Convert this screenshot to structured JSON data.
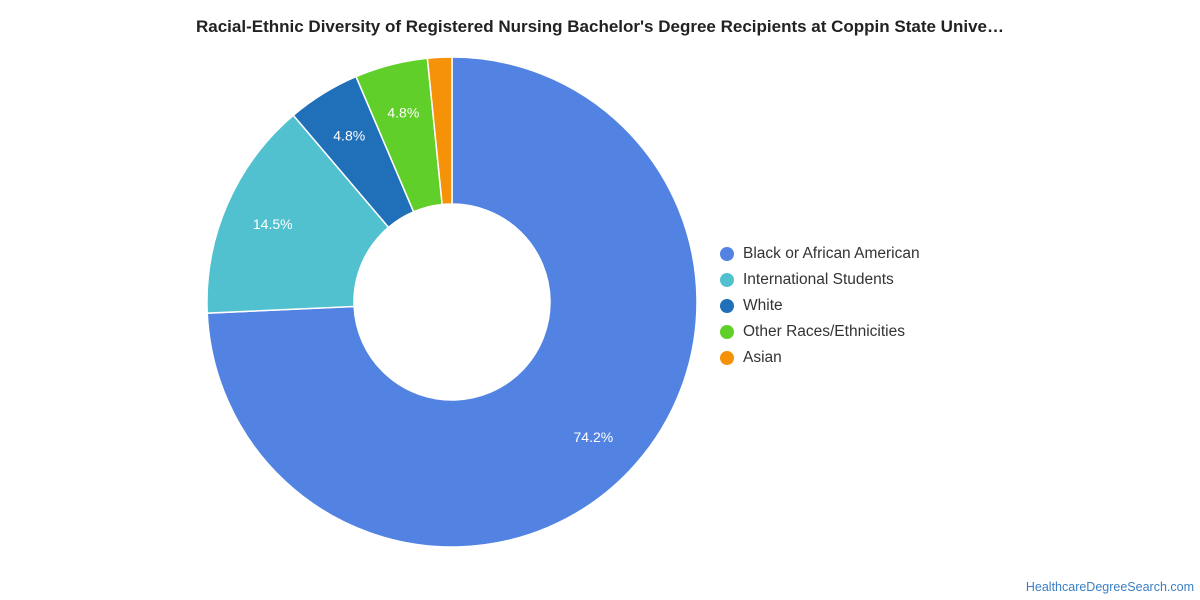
{
  "chart_data": {
    "type": "pie",
    "title": "Racial-Ethnic Diversity of Registered Nursing Bachelor's Degree Recipients at Coppin State Unive…",
    "series": [
      {
        "name": "Black or African American",
        "value": 74.2,
        "label": "74.2%",
        "color": "#5283e2"
      },
      {
        "name": "International Students",
        "value": 14.5,
        "label": "14.5%",
        "color": "#52c1cf"
      },
      {
        "name": "White",
        "value": 4.8,
        "label": "4.8%",
        "color": "#1f6fb9"
      },
      {
        "name": "Other Races/Ethnicities",
        "value": 4.8,
        "label": "4.8%",
        "color": "#60cf2a"
      },
      {
        "name": "Asian",
        "value": 1.6,
        "label": "",
        "color": "#f59208"
      }
    ],
    "legend_position": "right",
    "donut": true
  },
  "source": "HealthcareDegreeSearch.com"
}
